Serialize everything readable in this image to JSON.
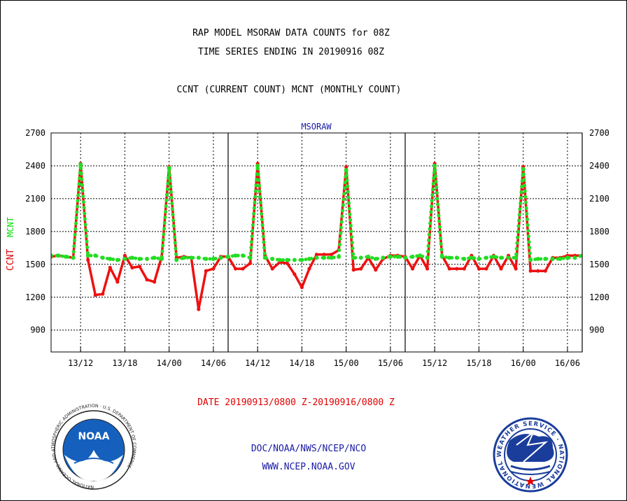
{
  "header": {
    "title_line1": "RAP MODEL MSORAW DATA COUNTS for 08Z",
    "title_line2": "TIME SERIES ENDING IN 20190916 08Z",
    "subtitle": "CCNT (CURRENT COUNT) MCNT (MONTHLY COUNT)"
  },
  "footer": {
    "date_range": "DATE 20190913/0800 Z-20190916/0800 Z",
    "org_line": "DOC/NOAA/NWS/NCEP/NCO",
    "site_url": "WWW.NCEP.NOAA.GOV"
  },
  "logos": {
    "noaa_text": "NOAA",
    "noaa_ring_text": "NATIONAL OCEANIC AND ATMOSPHERIC ADMINISTRATION · U.S. DEPARTMENT OF COMMERCE ·",
    "nws_ring_text": "NATIONAL WEATHER SERVICE · NATIONAL WEATHER SERVICE ·"
  },
  "chart_data": {
    "type": "line",
    "panel_label": "MSORAW",
    "ylabel_ccnt": "CCNT",
    "ylabel_mcnt": "MCNT",
    "ylim": [
      700,
      2700
    ],
    "yticks": [
      900,
      1200,
      1500,
      1800,
      2100,
      2400,
      2700
    ],
    "xlim": [
      8,
      80
    ],
    "xticks": [
      {
        "x": 12,
        "label": "13/12"
      },
      {
        "x": 18,
        "label": "13/18"
      },
      {
        "x": 24,
        "label": "14/00"
      },
      {
        "x": 30,
        "label": "14/06"
      },
      {
        "x": 36,
        "label": "14/12"
      },
      {
        "x": 42,
        "label": "14/18"
      },
      {
        "x": 48,
        "label": "15/00"
      },
      {
        "x": 54,
        "label": "15/06"
      },
      {
        "x": 60,
        "label": "15/12"
      },
      {
        "x": 66,
        "label": "15/18"
      },
      {
        "x": 72,
        "label": "16/00"
      },
      {
        "x": 78,
        "label": "16/06"
      }
    ],
    "day_boundaries": [
      32,
      56,
      80
    ],
    "grid": true,
    "colors": {
      "ccnt": "#ee1111",
      "mcnt": "#22dd22",
      "grid": "#000000"
    },
    "x": [
      8,
      9,
      10,
      11,
      12,
      13,
      14,
      15,
      16,
      17,
      18,
      19,
      20,
      21,
      22,
      23,
      24,
      25,
      26,
      27,
      28,
      29,
      30,
      31,
      32,
      33,
      34,
      35,
      36,
      37,
      38,
      39,
      40,
      41,
      42,
      43,
      44,
      45,
      46,
      47,
      48,
      49,
      50,
      51,
      52,
      53,
      54,
      55,
      56,
      57,
      58,
      59,
      60,
      61,
      62,
      63,
      64,
      65,
      66,
      67,
      68,
      69,
      70,
      71,
      72,
      73,
      74,
      75,
      76,
      77,
      78,
      79,
      80
    ],
    "series": [
      {
        "name": "CCNT",
        "color": "#ee1111",
        "style": "solid",
        "values": [
          1570,
          1580,
          1570,
          1560,
          2420,
          1540,
          1220,
          1230,
          1470,
          1340,
          1580,
          1470,
          1480,
          1360,
          1340,
          1570,
          2390,
          1560,
          1570,
          1560,
          1090,
          1440,
          1460,
          1570,
          1570,
          1460,
          1460,
          1510,
          2420,
          1580,
          1460,
          1520,
          1510,
          1410,
          1290,
          1460,
          1590,
          1590,
          1590,
          1630,
          2390,
          1450,
          1460,
          1560,
          1450,
          1550,
          1580,
          1580,
          1570,
          1460,
          1580,
          1460,
          2420,
          1580,
          1460,
          1460,
          1460,
          1580,
          1460,
          1460,
          1580,
          1460,
          1580,
          1460,
          2390,
          1440,
          1440,
          1440,
          1560,
          1560,
          1580,
          1580,
          1580
        ]
      },
      {
        "name": "MCNT",
        "color": "#22dd22",
        "style": "dotted",
        "values": [
          1580,
          1580,
          1570,
          1560,
          2410,
          1580,
          1580,
          1560,
          1550,
          1540,
          1550,
          1560,
          1550,
          1550,
          1560,
          1550,
          2380,
          1540,
          1560,
          1560,
          1560,
          1550,
          1550,
          1560,
          1570,
          1580,
          1580,
          1560,
          2400,
          1560,
          1550,
          1540,
          1540,
          1540,
          1540,
          1550,
          1560,
          1560,
          1560,
          1570,
          2360,
          1560,
          1560,
          1570,
          1550,
          1560,
          1570,
          1570,
          1560,
          1570,
          1580,
          1560,
          2400,
          1570,
          1560,
          1560,
          1550,
          1560,
          1550,
          1560,
          1570,
          1560,
          1560,
          1560,
          2370,
          1540,
          1550,
          1550,
          1550,
          1550,
          1560,
          1560,
          1580
        ]
      }
    ]
  }
}
